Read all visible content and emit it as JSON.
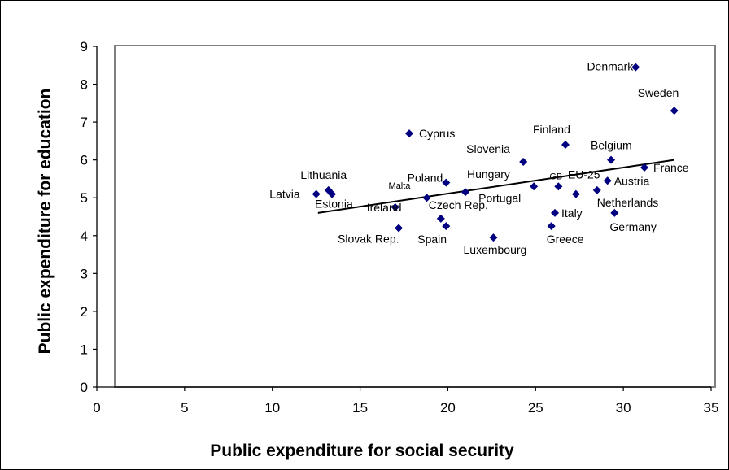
{
  "chart_data": {
    "type": "scatter",
    "xlabel": "Public expenditure for social security",
    "ylabel": "Public expenditure for education",
    "xlim": [
      0,
      35
    ],
    "ylim": [
      0,
      9
    ],
    "x_ticks": [
      0,
      5,
      10,
      15,
      20,
      25,
      30,
      35
    ],
    "y_ticks": [
      0,
      1,
      2,
      3,
      4,
      5,
      6,
      7,
      8,
      9
    ],
    "grid": false,
    "legend": "none",
    "marker_color": "#000080",
    "points": [
      {
        "label": "Denmark",
        "x": 30.7,
        "y": 8.45
      },
      {
        "label": "Sweden",
        "x": 32.9,
        "y": 7.3
      },
      {
        "label": "Cyprus",
        "x": 17.8,
        "y": 6.7
      },
      {
        "label": "Finland",
        "x": 26.7,
        "y": 6.4
      },
      {
        "label": "Belgium",
        "x": 29.3,
        "y": 6.0
      },
      {
        "label": "Slovenia",
        "x": 24.3,
        "y": 5.95
      },
      {
        "label": "France",
        "x": 31.2,
        "y": 5.8
      },
      {
        "label": "Austria",
        "x": 29.1,
        "y": 5.45
      },
      {
        "label": "Poland",
        "x": 19.9,
        "y": 5.4
      },
      {
        "label": "Portugal",
        "x": 24.9,
        "y": 5.3
      },
      {
        "label": "GB",
        "x": 26.3,
        "y": 5.3
      },
      {
        "label": "Lithuania",
        "x": 13.2,
        "y": 5.2
      },
      {
        "label": "Netherlands",
        "x": 28.5,
        "y": 5.2
      },
      {
        "label": "Hungary",
        "x": 21.0,
        "y": 5.15
      },
      {
        "label": "EU-25",
        "x": 27.3,
        "y": 5.1
      },
      {
        "label": "Latvia",
        "x": 12.5,
        "y": 5.1
      },
      {
        "label": "Estonia",
        "x": 13.4,
        "y": 5.1
      },
      {
        "label": "Malta",
        "x": 18.8,
        "y": 5.0
      },
      {
        "label": "Ireland",
        "x": 17.0,
        "y": 4.75
      },
      {
        "label": "Italy",
        "x": 26.1,
        "y": 4.6
      },
      {
        "label": "Germany",
        "x": 29.5,
        "y": 4.6
      },
      {
        "label": "Czech Rep.",
        "x": 19.6,
        "y": 4.45
      },
      {
        "label": "Spain",
        "x": 19.9,
        "y": 4.25
      },
      {
        "label": "Greece",
        "x": 25.9,
        "y": 4.25
      },
      {
        "label": "Slovak Rep.",
        "x": 17.2,
        "y": 4.2
      },
      {
        "label": "Luxembourg",
        "x": 22.6,
        "y": 3.95
      }
    ],
    "trendline": {
      "x": [
        12.6,
        32.9
      ],
      "y": [
        4.6,
        6.0
      ]
    }
  }
}
